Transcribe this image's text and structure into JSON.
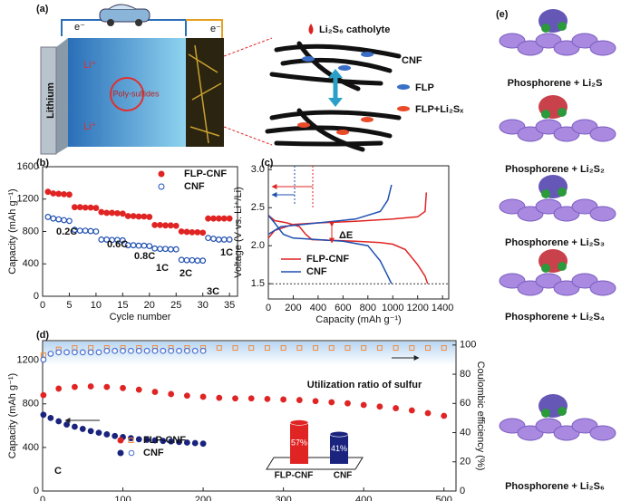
{
  "schematic_a": {
    "panel_label": "(a)",
    "electron_left": "e⁻",
    "electron_right": "e⁻",
    "anode": "Lithium",
    "ion_top": "Li⁺",
    "ion_bottom": "Li⁺",
    "shuttle": "Poly-sulfides",
    "catholyte": "Li₂S₆ catholyte",
    "legend": [
      "CNF",
      "FLP",
      "FLP+Li₂Sₓ"
    ]
  },
  "schematic_e": {
    "panel_label": "(e)",
    "labels": [
      "Phosphorene + Li₂S",
      "Phosphorene + Li₂S₂",
      "Phosphorene + Li₂S₃",
      "Phosphorene + Li₂S₄",
      "Phosphorene + Li₂S₆"
    ]
  },
  "chart_data": [
    {
      "type": "scatter",
      "panel_label": "(b)",
      "x_label": "Cycle number",
      "y_label": "Capacity (mAh g⁻¹)",
      "xlim": [
        0,
        36.5
      ],
      "xticks": [
        0,
        5,
        10,
        15,
        20,
        25,
        30,
        35
      ],
      "ylim": [
        0,
        1600
      ],
      "yticks": [
        0,
        400,
        800,
        1200,
        1600
      ],
      "annotations": [
        "0.2C",
        "0.6C",
        "0.8C",
        "1C",
        "2C",
        "3C",
        "1C"
      ],
      "series": [
        {
          "name": "FLP-CNF",
          "color": "#e02424",
          "marker": "filled",
          "x": [
            1,
            2,
            3,
            4,
            5,
            6,
            7,
            8,
            9,
            10,
            11,
            12,
            13,
            14,
            15,
            16,
            17,
            18,
            19,
            20,
            21,
            22,
            23,
            24,
            25,
            26,
            27,
            28,
            29,
            30,
            31,
            32,
            33,
            34,
            35
          ],
          "values": [
            1290,
            1270,
            1265,
            1260,
            1255,
            1100,
            1100,
            1095,
            1095,
            1090,
            1040,
            1030,
            1030,
            1025,
            1020,
            990,
            990,
            985,
            985,
            980,
            880,
            880,
            875,
            875,
            870,
            800,
            795,
            790,
            790,
            785,
            960,
            960,
            960,
            960,
            960
          ]
        },
        {
          "name": "CNF",
          "color": "#1f4fb0",
          "marker": "open",
          "x": [
            1,
            2,
            3,
            4,
            5,
            6,
            7,
            8,
            9,
            10,
            11,
            12,
            13,
            14,
            15,
            16,
            17,
            18,
            19,
            20,
            21,
            22,
            23,
            24,
            25,
            26,
            27,
            28,
            29,
            30,
            31,
            32,
            33,
            34,
            35
          ],
          "values": [
            980,
            960,
            950,
            940,
            930,
            820,
            810,
            810,
            805,
            800,
            700,
            700,
            695,
            695,
            690,
            630,
            630,
            625,
            625,
            620,
            590,
            585,
            585,
            580,
            580,
            450,
            445,
            445,
            440,
            440,
            720,
            710,
            700,
            700,
            700
          ]
        }
      ]
    },
    {
      "type": "line",
      "panel_label": "(c)",
      "x_label": "Capacity (mAh g⁻¹)",
      "y_label": "Voltage (V vs. Li⁺/Li)",
      "xlim": [
        0,
        1450
      ],
      "xticks": [
        0,
        200,
        400,
        600,
        800,
        1000,
        1200,
        1400
      ],
      "ylim": [
        1.3,
        3.05
      ],
      "yticks": [
        {
          "value": 1.5,
          "label": "1.5"
        },
        {
          "value": 2,
          "label": "2.0"
        },
        {
          "value": 2.5,
          "label": "2.5"
        },
        {
          "value": 3,
          "label": "3.0"
        }
      ],
      "annotations": [
        "ΔE"
      ],
      "series": [
        {
          "name": "FLP-CNF",
          "color": "#e02424",
          "x": [
            0,
            50,
            150,
            250,
            300,
            350,
            500,
            700,
            900,
            1000,
            1100,
            1200,
            1260,
            1280,
            null,
            0,
            50,
            200,
            400,
            700,
            1000,
            1200,
            1260,
            1270
          ],
          "values": [
            2.4,
            2.33,
            2.3,
            2.25,
            2.15,
            2.08,
            2.07,
            2.06,
            2.04,
            2.02,
            1.95,
            1.75,
            1.6,
            1.5,
            null,
            2.1,
            2.2,
            2.28,
            2.3,
            2.32,
            2.35,
            2.38,
            2.45,
            2.7
          ]
        },
        {
          "name": "CNF",
          "color": "#1f4fb0",
          "x": [
            0,
            50,
            120,
            200,
            400,
            600,
            800,
            900,
            960,
            990,
            null,
            0,
            100,
            400,
            700,
            900,
            960,
            990
          ],
          "values": [
            2.4,
            2.3,
            2.15,
            2.1,
            2.08,
            2.06,
            2.0,
            1.8,
            1.6,
            1.5,
            null,
            2.15,
            2.25,
            2.3,
            2.35,
            2.45,
            2.6,
            2.8
          ]
        }
      ]
    },
    {
      "type": "scatter",
      "panel_label": "(d)",
      "x_label": "Cycle number",
      "y_label": "Capacity (mAh g⁻¹)",
      "y2_label": "Coulombic efficiency (%)",
      "xlim": [
        0,
        515
      ],
      "xticks": [
        0,
        100,
        200,
        300,
        400,
        500
      ],
      "ylim": [
        0,
        1380
      ],
      "yticks": [
        0,
        400,
        800,
        1200
      ],
      "y2lim": [
        0,
        103
      ],
      "y2ticks": [
        0,
        20,
        40,
        60,
        80,
        100
      ],
      "annotations": [
        "C"
      ],
      "series": [
        {
          "name": "FLP-CNF",
          "color": "#e02424",
          "marker": "filled",
          "x": [
            1,
            20,
            40,
            60,
            80,
            100,
            120,
            140,
            160,
            180,
            200,
            220,
            240,
            260,
            280,
            300,
            320,
            340,
            360,
            380,
            400,
            420,
            440,
            460,
            480,
            500
          ],
          "values": [
            880,
            940,
            955,
            960,
            955,
            945,
            930,
            910,
            890,
            875,
            865,
            855,
            850,
            850,
            845,
            840,
            835,
            825,
            815,
            805,
            790,
            775,
            760,
            740,
            715,
            690
          ]
        },
        {
          "color": "#f08a3c",
          "marker": "open-square",
          "axis": "y2",
          "x": [
            1,
            20,
            40,
            60,
            80,
            100,
            120,
            140,
            160,
            180,
            200,
            220,
            240,
            260,
            280,
            300,
            320,
            340,
            360,
            380,
            400,
            420,
            440,
            460,
            480,
            500
          ],
          "values": [
            93,
            97,
            98,
            98,
            98,
            98,
            98,
            98,
            98,
            98,
            98,
            98,
            98,
            98,
            98,
            98,
            98,
            98,
            98,
            98,
            98,
            98,
            98,
            98,
            98,
            98
          ]
        },
        {
          "name": "CNF",
          "color": "#1a237e",
          "marker": "filled",
          "x": [
            1,
            10,
            20,
            30,
            40,
            50,
            60,
            70,
            80,
            90,
            100,
            110,
            120,
            130,
            140,
            150,
            160,
            170,
            180,
            190,
            200
          ],
          "values": [
            700,
            670,
            640,
            610,
            590,
            570,
            550,
            535,
            520,
            505,
            495,
            485,
            475,
            470,
            465,
            460,
            455,
            450,
            445,
            440,
            435
          ]
        },
        {
          "color": "#4a6fd0",
          "marker": "open",
          "axis": "y2",
          "x": [
            1,
            10,
            20,
            30,
            40,
            50,
            60,
            70,
            80,
            90,
            100,
            110,
            120,
            130,
            140,
            150,
            160,
            170,
            180,
            190,
            200
          ],
          "values": [
            90,
            94,
            95,
            95,
            95,
            95,
            95,
            95,
            96,
            96,
            96,
            96,
            96,
            96,
            96,
            96,
            96,
            96,
            96,
            96,
            96
          ]
        }
      ],
      "inset": {
        "type": "bar",
        "title": "Utilization ratio of sulfur",
        "categories": [
          "FLP-CNF",
          "CNF"
        ],
        "values": [
          57,
          41
        ],
        "value_labels": [
          "57%",
          "41%"
        ],
        "colors": [
          "#e02424",
          "#1a237e"
        ]
      }
    }
  ]
}
